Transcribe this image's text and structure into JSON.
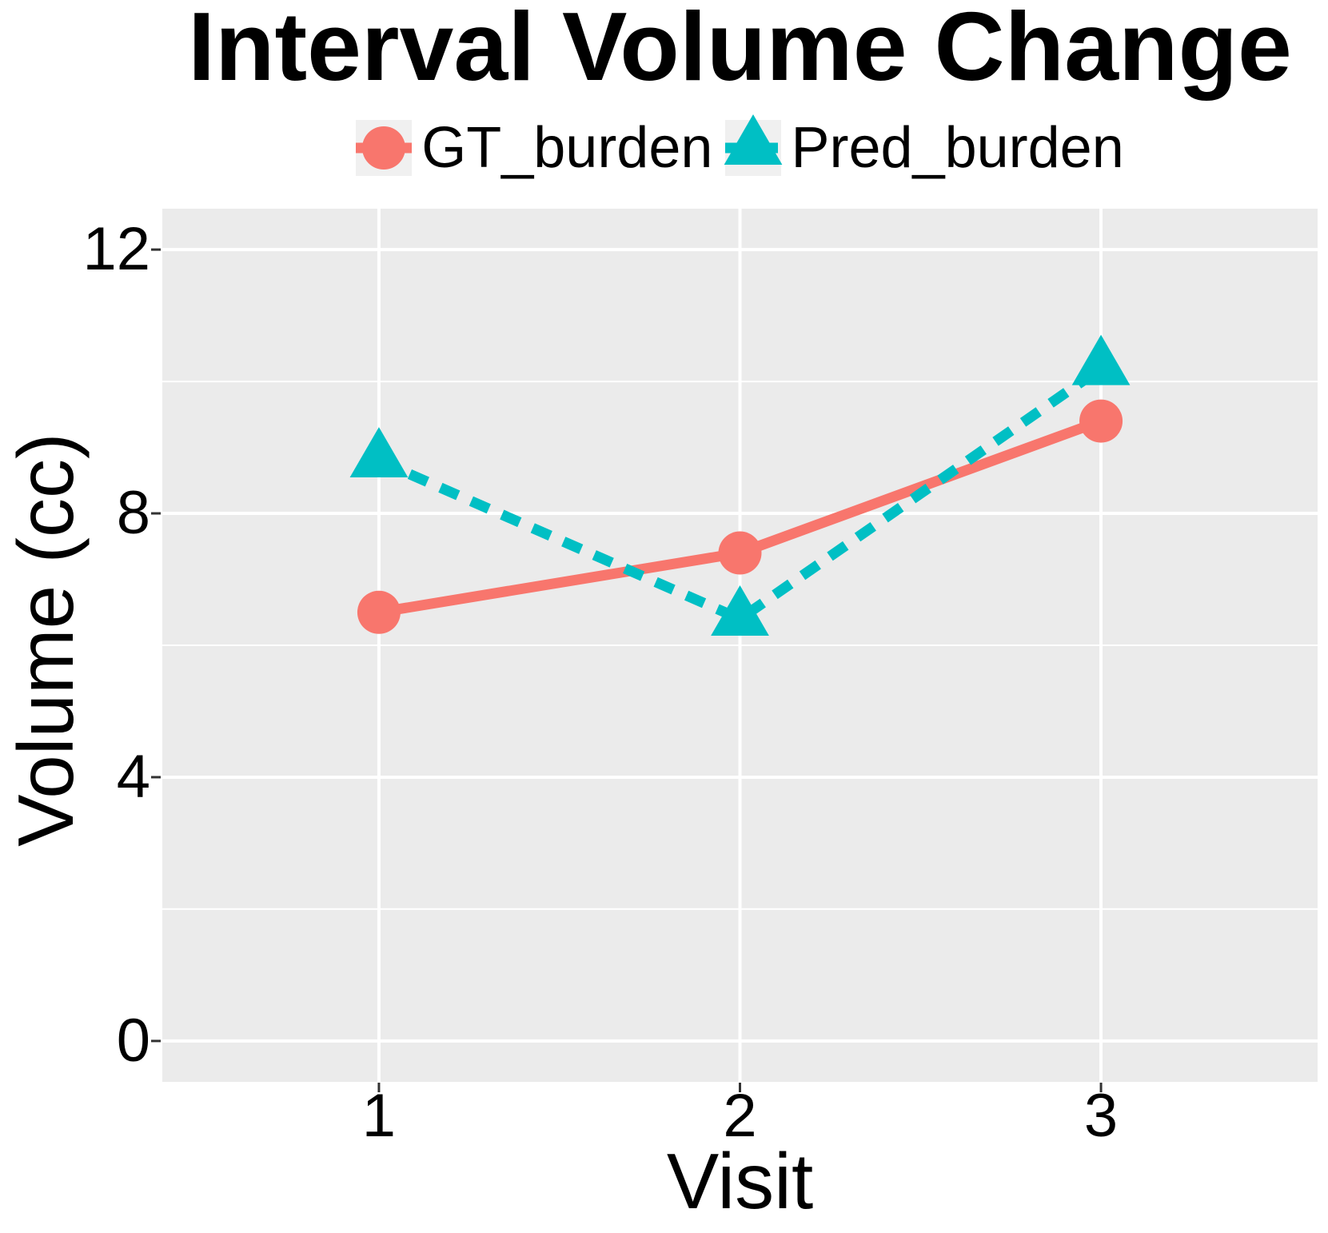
{
  "header": {
    "title": "Interval Volume Change"
  },
  "legend": {
    "key_bg": "#F0F0F0",
    "items": [
      {
        "label": "GT_burden",
        "color": "#F8766D",
        "marker": "circle",
        "line": "solid"
      },
      {
        "label": "Pred_burden",
        "color": "#00BFC4",
        "marker": "triangle",
        "line": "dashed"
      }
    ]
  },
  "axes": {
    "x": {
      "title": "Visit"
    },
    "y": {
      "title": "Volume (cc)"
    }
  },
  "chart_data": {
    "type": "line",
    "title": "Interval Volume Change",
    "xlabel": "Visit",
    "ylabel": "Volume (cc)",
    "x": [
      1,
      2,
      3
    ],
    "x_tick_labels": [
      "1",
      "2",
      "3"
    ],
    "series": [
      {
        "name": "GT_burden",
        "values": [
          6.5,
          7.4,
          9.4
        ],
        "color": "#F8766D",
        "marker": "circle",
        "linestyle": "solid"
      },
      {
        "name": "Pred_burden",
        "values": [
          8.8,
          6.4,
          10.2
        ],
        "color": "#00BFC4",
        "marker": "triangle",
        "linestyle": "dashed"
      }
    ],
    "xlim": [
      0.4,
      3.6
    ],
    "ylim": [
      -0.62,
      12.62
    ],
    "y_major_ticks": [
      0,
      4,
      8,
      12
    ],
    "y_minor_gridlines": [
      2,
      6,
      10
    ],
    "grid": true,
    "legend_position": "top-center",
    "panel_bg": "#EBEBEB",
    "grid_color": "#FFFFFF",
    "tick_color": "#333333",
    "text_color": "#000000"
  }
}
